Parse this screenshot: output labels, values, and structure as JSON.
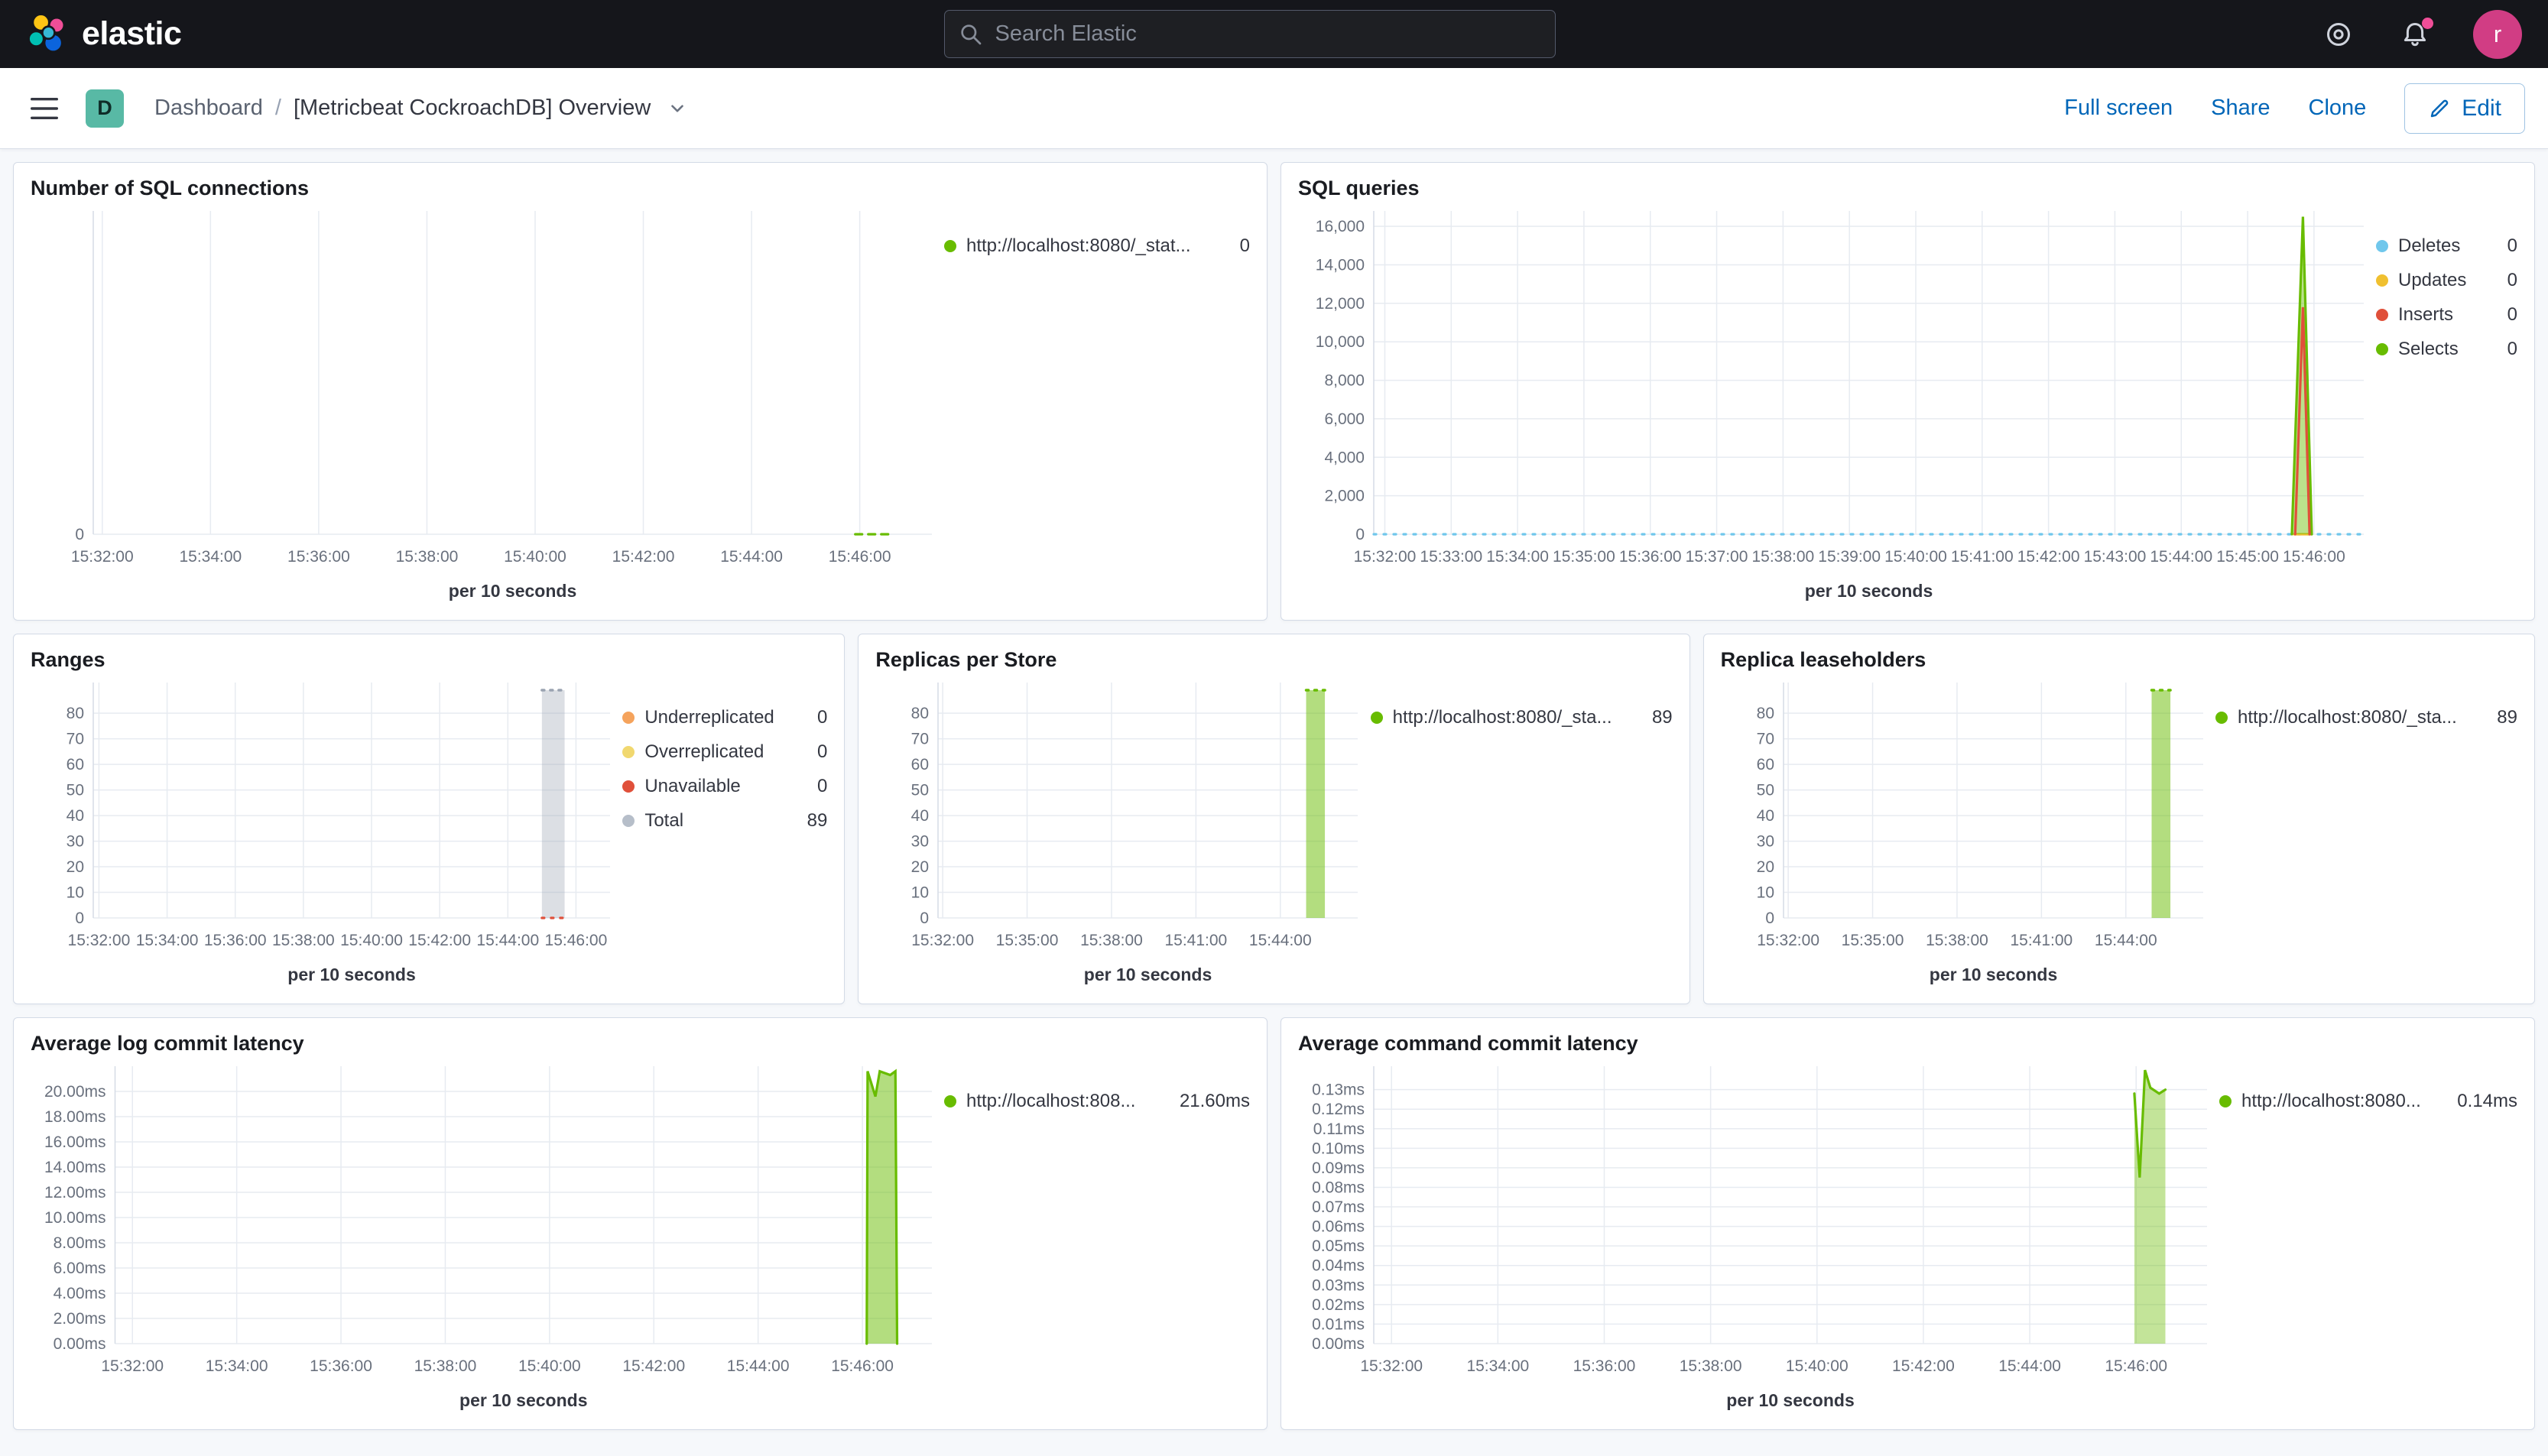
{
  "header": {
    "brand": "elastic",
    "search_placeholder": "Search Elastic",
    "avatar_initial": "r"
  },
  "toolbar": {
    "space_initial": "D",
    "breadcrumb_root": "Dashboard",
    "breadcrumb_sep": "/",
    "title": "[Metricbeat CockroachDB] Overview",
    "actions": [
      "Full screen",
      "Share",
      "Clone"
    ],
    "edit_label": "Edit"
  },
  "colors": {
    "green": "#68BC00",
    "light_blue": "#70C7EC",
    "yellow": "#F0C030",
    "red": "#E0503A",
    "orange": "#F5A35C",
    "pale_yellow": "#F1D86F",
    "gray": "#B6BEC9",
    "link_blue": "#0066b8",
    "header_bg": "#15161b",
    "accent_pink": "#F04E98"
  },
  "panels": [
    {
      "title": "Number of SQL connections",
      "legend": {
        "items": [
          {
            "color": "#68BC00",
            "label": "http://localhost:8080/_stat...",
            "value": "0"
          }
        ]
      },
      "chart": {
        "type": "line",
        "x_label": "per 10 seconds",
        "x_domain": [
          "15:31:50",
          "15:47:20"
        ],
        "x_ticks": [
          "15:32:00",
          "15:34:00",
          "15:36:00",
          "15:38:00",
          "15:40:00",
          "15:42:00",
          "15:44:00",
          "15:46:00"
        ],
        "ylim": [
          0,
          1
        ],
        "y_ticks": [
          {
            "v": 0,
            "label": "0"
          }
        ],
        "series": [
          {
            "name": "http://localhost:8080/_stat...",
            "type": "line",
            "color": "#68BC00",
            "dash": "9 8",
            "points": [
              [
                "15:45:55",
                0
              ],
              [
                "15:46:35",
                0
              ]
            ]
          }
        ]
      }
    },
    {
      "title": "SQL queries",
      "legend": {
        "items": [
          {
            "color": "#70C7EC",
            "label": "Deletes",
            "value": "0"
          },
          {
            "color": "#F0C030",
            "label": "Updates",
            "value": "0"
          },
          {
            "color": "#E0503A",
            "label": "Inserts",
            "value": "0"
          },
          {
            "color": "#68BC00",
            "label": "Selects",
            "value": "0"
          }
        ]
      },
      "chart": {
        "type": "line",
        "x_label": "per 10 seconds",
        "x_domain": [
          "15:31:50",
          "15:46:45"
        ],
        "x_ticks": [
          "15:32:00",
          "15:33:00",
          "15:34:00",
          "15:35:00",
          "15:36:00",
          "15:37:00",
          "15:38:00",
          "15:39:00",
          "15:40:00",
          "15:41:00",
          "15:42:00",
          "15:43:00",
          "15:44:00",
          "15:45:00",
          "15:46:00"
        ],
        "ylim": [
          0,
          16800
        ],
        "y_ticks": [
          {
            "v": 0,
            "label": "0"
          },
          {
            "v": 2000,
            "label": "2,000"
          },
          {
            "v": 4000,
            "label": "4,000"
          },
          {
            "v": 6000,
            "label": "6,000"
          },
          {
            "v": 8000,
            "label": "8,000"
          },
          {
            "v": 10000,
            "label": "10,000"
          },
          {
            "v": 12000,
            "label": "12,000"
          },
          {
            "v": 14000,
            "label": "14,000"
          },
          {
            "v": 16000,
            "label": "16,000"
          }
        ],
        "series": [
          {
            "name": "Deletes",
            "type": "line",
            "color": "#70C7EC",
            "dash": "3 10",
            "points": [
              [
                "15:31:50",
                0
              ],
              [
                "15:46:45",
                0
              ]
            ]
          },
          {
            "name": "Updates",
            "type": "line",
            "color": "#F0C030",
            "points": [
              [
                "15:45:42",
                0
              ],
              [
                "15:45:58",
                0
              ]
            ]
          },
          {
            "name": "Selects",
            "type": "area",
            "color": "#68BC00",
            "fill_opacity": 0.45,
            "points": [
              [
                "15:45:40",
                0
              ],
              [
                "15:45:50",
                16500
              ],
              [
                "15:45:58",
                0
              ]
            ]
          },
          {
            "name": "Inserts",
            "type": "line",
            "color": "#E0503A",
            "points": [
              [
                "15:45:43",
                0
              ],
              [
                "15:45:50",
                11800
              ],
              [
                "15:45:56",
                0
              ]
            ]
          }
        ]
      }
    },
    {
      "title": "Ranges",
      "legend": {
        "items": [
          {
            "color": "#F5A35C",
            "label": "Underreplicated",
            "value": "0"
          },
          {
            "color": "#F1D86F",
            "label": "Overreplicated",
            "value": "0"
          },
          {
            "color": "#E0503A",
            "label": "Unavailable",
            "value": "0"
          },
          {
            "color": "#B6BEC9",
            "label": "Total",
            "value": "89"
          }
        ]
      },
      "chart": {
        "type": "bar",
        "x_label": "per 10 seconds",
        "x_domain": [
          "15:31:50",
          "15:47:00"
        ],
        "x_ticks": [
          "15:32:00",
          "15:34:00",
          "15:36:00",
          "15:38:00",
          "15:40:00",
          "15:42:00",
          "15:44:00",
          "15:46:00"
        ],
        "ylim": [
          0,
          92
        ],
        "y_ticks": [
          {
            "v": 0,
            "label": "0"
          },
          {
            "v": 10,
            "label": "10"
          },
          {
            "v": 20,
            "label": "20"
          },
          {
            "v": 30,
            "label": "30"
          },
          {
            "v": 40,
            "label": "40"
          },
          {
            "v": 50,
            "label": "50"
          },
          {
            "v": 60,
            "label": "60"
          },
          {
            "v": 70,
            "label": "70"
          },
          {
            "v": 80,
            "label": "80"
          }
        ],
        "series": [
          {
            "name": "Total",
            "type": "band",
            "color": "#9aa3b1",
            "fill_opacity": 0.35,
            "from": "15:45:00",
            "to": "15:45:40",
            "value": 89
          },
          {
            "name": "Unavailable",
            "type": "line",
            "color": "#E0503A",
            "dash": "3 9",
            "points": [
              [
                "15:45:00",
                0
              ],
              [
                "15:45:40",
                0
              ]
            ]
          }
        ]
      }
    },
    {
      "title": "Replicas per Store",
      "legend": {
        "items": [
          {
            "color": "#68BC00",
            "label": "http://localhost:8080/_sta...",
            "value": "89"
          }
        ]
      },
      "chart": {
        "type": "bar",
        "x_label": "per 10 seconds",
        "x_domain": [
          "15:31:50",
          "15:46:45"
        ],
        "x_ticks": [
          "15:32:00",
          "15:35:00",
          "15:38:00",
          "15:41:00",
          "15:44:00"
        ],
        "ylim": [
          0,
          92
        ],
        "y_ticks": [
          {
            "v": 0,
            "label": "0"
          },
          {
            "v": 10,
            "label": "10"
          },
          {
            "v": 20,
            "label": "20"
          },
          {
            "v": 30,
            "label": "30"
          },
          {
            "v": 40,
            "label": "40"
          },
          {
            "v": 50,
            "label": "50"
          },
          {
            "v": 60,
            "label": "60"
          },
          {
            "v": 70,
            "label": "70"
          },
          {
            "v": 80,
            "label": "80"
          }
        ],
        "series": [
          {
            "name": "http://localhost:8080/_sta...",
            "type": "band",
            "color": "#68BC00",
            "fill_opacity": 0.5,
            "from": "15:44:55",
            "to": "15:45:35",
            "value": 89
          }
        ]
      }
    },
    {
      "title": "Replica leaseholders",
      "legend": {
        "items": [
          {
            "color": "#68BC00",
            "label": "http://localhost:8080/_sta...",
            "value": "89"
          }
        ]
      },
      "chart": {
        "type": "bar",
        "x_label": "per 10 seconds",
        "x_domain": [
          "15:31:50",
          "15:46:45"
        ],
        "x_ticks": [
          "15:32:00",
          "15:35:00",
          "15:38:00",
          "15:41:00",
          "15:44:00"
        ],
        "ylim": [
          0,
          92
        ],
        "y_ticks": [
          {
            "v": 0,
            "label": "0"
          },
          {
            "v": 10,
            "label": "10"
          },
          {
            "v": 20,
            "label": "20"
          },
          {
            "v": 30,
            "label": "30"
          },
          {
            "v": 40,
            "label": "40"
          },
          {
            "v": 50,
            "label": "50"
          },
          {
            "v": 60,
            "label": "60"
          },
          {
            "v": 70,
            "label": "70"
          },
          {
            "v": 80,
            "label": "80"
          }
        ],
        "series": [
          {
            "name": "http://localhost:8080/_sta...",
            "type": "band",
            "color": "#68BC00",
            "fill_opacity": 0.5,
            "from": "15:44:55",
            "to": "15:45:35",
            "value": 89
          }
        ]
      }
    },
    {
      "title": "Average log commit latency",
      "legend": {
        "items": [
          {
            "color": "#68BC00",
            "label": "http://localhost:808...",
            "value": "21.60ms"
          }
        ]
      },
      "chart": {
        "type": "area",
        "x_label": "per 10 seconds",
        "x_domain": [
          "15:31:40",
          "15:47:20"
        ],
        "x_ticks": [
          "15:32:00",
          "15:34:00",
          "15:36:00",
          "15:38:00",
          "15:40:00",
          "15:42:00",
          "15:44:00",
          "15:46:00"
        ],
        "ylim": [
          0,
          22
        ],
        "y_ticks": [
          {
            "v": 0,
            "label": "0.00ms"
          },
          {
            "v": 2,
            "label": "2.00ms"
          },
          {
            "v": 4,
            "label": "4.00ms"
          },
          {
            "v": 6,
            "label": "6.00ms"
          },
          {
            "v": 8,
            "label": "8.00ms"
          },
          {
            "v": 10,
            "label": "10.00ms"
          },
          {
            "v": 12,
            "label": "12.00ms"
          },
          {
            "v": 14,
            "label": "14.00ms"
          },
          {
            "v": 16,
            "label": "16.00ms"
          },
          {
            "v": 18,
            "label": "18.00ms"
          },
          {
            "v": 20,
            "label": "20.00ms"
          }
        ],
        "series": [
          {
            "name": "http://localhost:808...",
            "type": "area",
            "color": "#68BC00",
            "fill_opacity": 0.5,
            "points": [
              [
                "15:46:05",
                0
              ],
              [
                "15:46:06",
                21.6
              ],
              [
                "15:46:15",
                19.6
              ],
              [
                "15:46:20",
                21.6
              ],
              [
                "15:46:32",
                21.3
              ],
              [
                "15:46:38",
                21.6
              ],
              [
                "15:46:40",
                0
              ]
            ]
          }
        ]
      }
    },
    {
      "title": "Average command commit latency",
      "legend": {
        "items": [
          {
            "color": "#68BC00",
            "label": "http://localhost:8080...",
            "value": "0.14ms"
          }
        ]
      },
      "chart": {
        "type": "area",
        "x_label": "per 10 seconds",
        "x_domain": [
          "15:31:40",
          "15:47:20"
        ],
        "x_ticks": [
          "15:32:00",
          "15:34:00",
          "15:36:00",
          "15:38:00",
          "15:40:00",
          "15:42:00",
          "15:44:00",
          "15:46:00"
        ],
        "ylim": [
          0,
          0.142
        ],
        "y_ticks": [
          {
            "v": 0,
            "label": "0.00ms"
          },
          {
            "v": 0.01,
            "label": "0.01ms"
          },
          {
            "v": 0.02,
            "label": "0.02ms"
          },
          {
            "v": 0.03,
            "label": "0.03ms"
          },
          {
            "v": 0.04,
            "label": "0.04ms"
          },
          {
            "v": 0.05,
            "label": "0.05ms"
          },
          {
            "v": 0.06,
            "label": "0.06ms"
          },
          {
            "v": 0.07,
            "label": "0.07ms"
          },
          {
            "v": 0.08,
            "label": "0.08ms"
          },
          {
            "v": 0.09,
            "label": "0.09ms"
          },
          {
            "v": 0.1,
            "label": "0.10ms"
          },
          {
            "v": 0.11,
            "label": "0.11ms"
          },
          {
            "v": 0.12,
            "label": "0.12ms"
          },
          {
            "v": 0.13,
            "label": "0.13ms"
          }
        ],
        "series": [
          {
            "name": "http://localhost:8080...",
            "type": "area",
            "color": "#68BC00",
            "fill_opacity": 0.4,
            "points": [
              [
                "15:45:58",
                0.128
              ],
              [
                "15:46:04",
                0.085
              ],
              [
                "15:46:10",
                0.14
              ],
              [
                "15:46:16",
                0.131
              ],
              [
                "15:46:26",
                0.128
              ],
              [
                "15:46:33",
                0.13
              ]
            ]
          }
        ]
      }
    }
  ]
}
